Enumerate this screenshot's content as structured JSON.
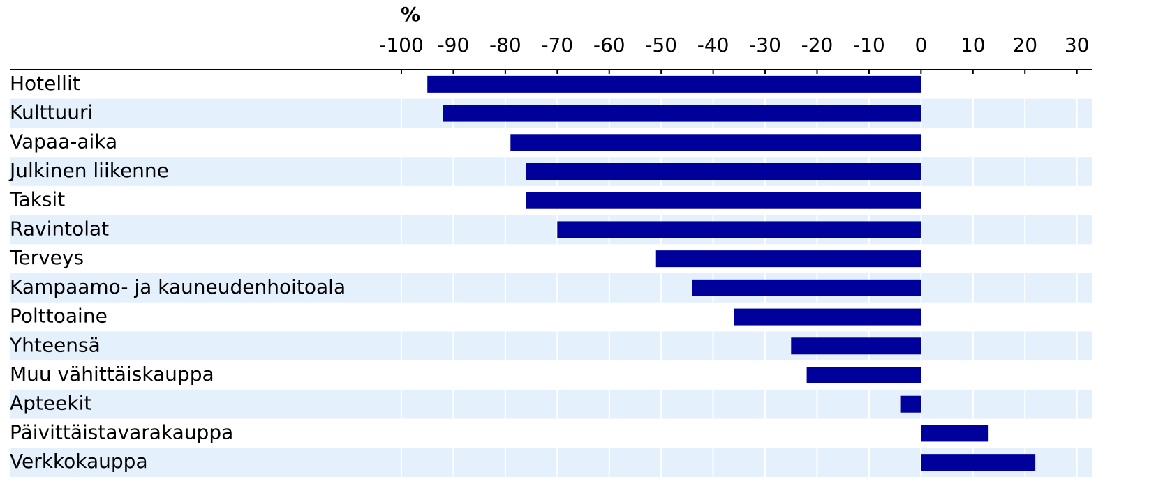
{
  "chart_data": {
    "type": "barh",
    "xlabel": "%",
    "categories": [
      "Hotellit",
      "Kulttuuri",
      "Vapaa-aika",
      "Julkinen liikenne",
      "Taksit",
      "Ravintolat",
      "Terveys",
      "Kampaamo- ja kauneudenhoitoala",
      "Polttoaine",
      "Yhteensä",
      "Muu vähittäiskauppa",
      "Apteekit",
      "Päivittäistavarakauppa",
      "Verkkokauppa"
    ],
    "values": [
      -95,
      -92,
      -79,
      -76,
      -76,
      -70,
      -51,
      -44,
      -36,
      -25,
      -22,
      -4,
      13,
      22
    ],
    "color": "#00009b",
    "band_color": "#e4f1fc",
    "xlim": [
      -100,
      33
    ],
    "xticks": [
      -100,
      -90,
      -80,
      -70,
      -60,
      -50,
      -40,
      -30,
      -20,
      -10,
      0,
      10,
      20,
      30
    ],
    "grid": true
  }
}
